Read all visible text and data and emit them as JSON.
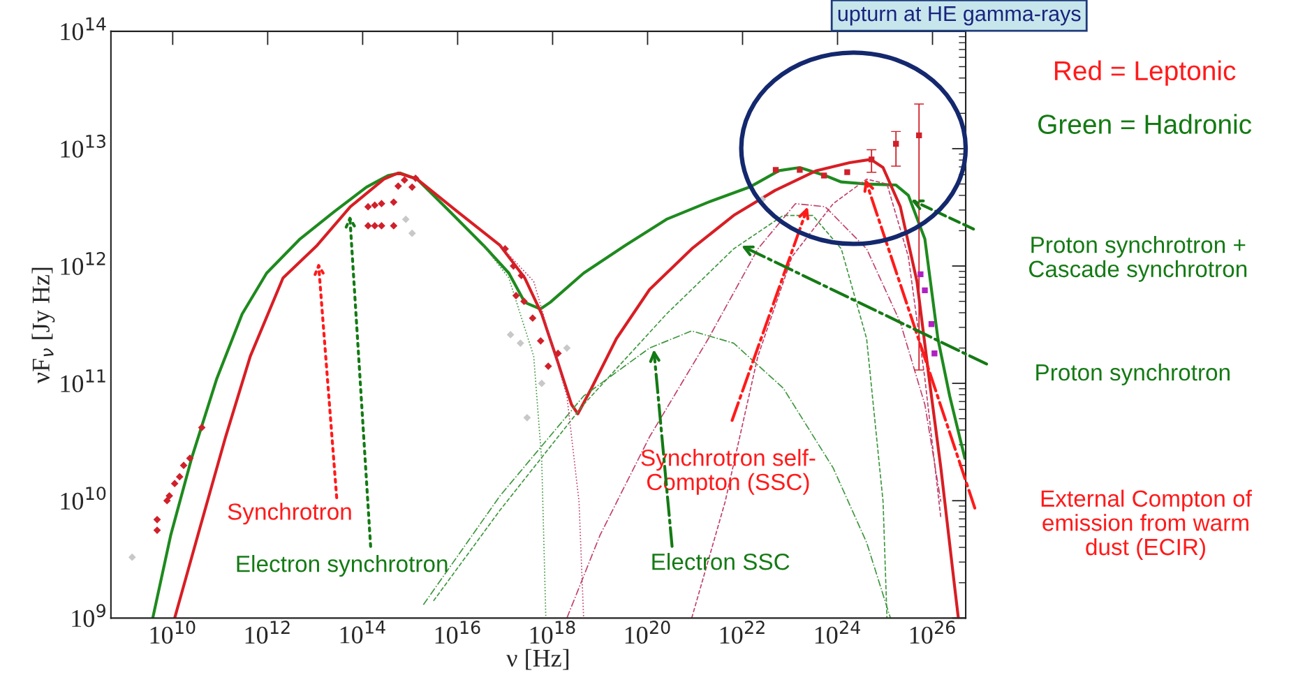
{
  "chart_data": {
    "type": "line",
    "xlabel": "ν [Hz]",
    "ylabel": "νF$_{ν}$ [Jy Hz]",
    "log": "xy",
    "grid": false,
    "legend": false,
    "xlim": [
      500000000.0,
      5e+26
    ],
    "ylim": [
      1000000000.0,
      100000000000000.0
    ],
    "xticks": [
      {
        "value": 10000000000.0,
        "label": "10$^{10}$"
      },
      {
        "value": 1000000000000.0,
        "label": "10$^{12}$"
      },
      {
        "value": 100000000000000.0,
        "label": "10$^{14}$"
      },
      {
        "value": 1e+16,
        "label": "10$^{16}$"
      },
      {
        "value": 1e+18,
        "label": "10$^{18}$"
      },
      {
        "value": 1e+20,
        "label": "10$^{20}$"
      },
      {
        "value": 1e+22,
        "label": "10$^{22}$"
      },
      {
        "value": 1e+24,
        "label": "10$^{24}$"
      },
      {
        "value": 1e+26,
        "label": "10$^{26}$"
      }
    ],
    "yticks": [
      {
        "value": 1000000000.0,
        "label": "10$^{9}$"
      },
      {
        "value": 10000000000.0,
        "label": "10$^{10}$"
      },
      {
        "value": 100000000000.0,
        "label": "10$^{11}$"
      },
      {
        "value": 1000000000000.0,
        "label": "10$^{12}$"
      },
      {
        "value": 10000000000000.0,
        "label": "10$^{13}$"
      },
      {
        "value": 100000000000000.0,
        "label": "10$^{14}$"
      }
    ],
    "series": [
      {
        "color": "#1e8a1e",
        "line_style": "solid",
        "x": [
          3800000000.0,
          9100000000.0,
          25000000000.0,
          85000000000.0,
          290000000000.0,
          950000000000.0,
          4800000000000.0,
          25000000000000.0,
          120000000000000.0,
          340000000000000.0,
          620000000000000.0,
          1400000000000000.0,
          6900000000000000.0,
          3.5e+16,
          1.2e+17,
          2.6e+17,
          5.5e+17,
          8.9e+17,
          4.5e+18,
          3.4e+19,
          2.5e+20,
          1.9e+21,
          1.4e+22,
          5.9e+22,
          1.6e+23,
          5.5e+23,
          1.2e+24,
          4.1e+24,
          1.7e+25,
          3.1e+25,
          6.9e+25,
          1.3e+26,
          2.3e+26,
          4.8e+26
        ],
        "values": [
          1000000000.0,
          5100000000.0,
          23000000000.0,
          110000000000.0,
          390000000000.0,
          870000000000.0,
          1700000000000.0,
          2900000000000.0,
          4700000000000.0,
          5900000000000.0,
          6200000000000.0,
          5500000000000.0,
          2900000000000.0,
          1500000000000.0,
          870000000000.0,
          490000000000.0,
          430000000000.0,
          490000000000.0,
          870000000000.0,
          1500000000000.0,
          2500000000000.0,
          3500000000000.0,
          4700000000000.0,
          6500000000000.0,
          6900000000000.0,
          5900000000000.0,
          5200000000000.0,
          5000000000000.0,
          4900000000000.0,
          4000000000000.0,
          1700000000000.0,
          240000000000.0,
          78000000000.0,
          23000000000.0
        ]
      },
      {
        "color": "#d81e24",
        "line_style": "solid",
        "x": [
          11000000000.0,
          38000000000.0,
          130000000000.0,
          430000000000.0,
          2100000000000.0,
          11000000000000.0,
          55000000000000.0,
          280000000000000.0,
          560000000000000.0,
          1400000000000000.0,
          1e+16,
          7.8e+16,
          2.6e+17,
          5.9e+17,
          1.3e+18,
          2.5e+18,
          3.4e+18,
          6.6e+18,
          2.2e+19,
          1.1e+20,
          8.5e+20,
          6.5e+21,
          4.8e+22,
          3.6e+23,
          1.8e+24,
          5e+24,
          9.1e+24,
          2.1e+25,
          4.7e+25,
          8.5e+25,
          1.5e+26,
          2.9e+26,
          3.5e+26
        ],
        "values": [
          1000000000.0,
          6000000000.0,
          35000000000.0,
          170000000000.0,
          790000000000.0,
          1500000000000.0,
          3200000000000.0,
          5500000000000.0,
          6200000000000.0,
          5500000000000.0,
          2900000000000.0,
          1500000000000.0,
          790000000000.0,
          390000000000.0,
          150000000000.0,
          66000000000.0,
          55000000000.0,
          91000000000.0,
          240000000000.0,
          630000000000.0,
          1400000000000.0,
          2700000000000.0,
          4400000000000.0,
          6500000000000.0,
          7600000000000.0,
          8100000000000.0,
          6900000000000.0,
          3200000000000.0,
          740000000000.0,
          110000000000.0,
          19000000000.0,
          1900000000.0,
          1000000000.0
        ]
      },
      {
        "color": "#3c963c",
        "line_style": "dashed",
        "x": [
          3100000000000000.0,
          7.8e+16,
          4.5e+18,
          2.5e+20,
          6.5e+21,
          7.2e+22,
          3e+23,
          1.2e+24,
          4.1e+24,
          9.1e+24,
          1.1e+25
        ],
        "values": [
          1400000000.0,
          8300000000.0,
          66000000000.0,
          390000000000.0,
          1400000000000.0,
          2700000000000.0,
          2700000000000.0,
          1400000000000.0,
          240000000000.0,
          9800000000.0,
          1000000000.0
        ]
      },
      {
        "color": "#3c963c",
        "line_style": "dashdot",
        "x": [
          1900000000000000.0,
          7.8e+16,
          4.5e+18,
          1.1e+20,
          8.5e+20,
          6.5e+21,
          7.2e+22,
          8.1e+23,
          4.1e+24,
          1.3e+25
        ],
        "values": [
          1300000000.0,
          11000000000.0,
          78000000000.0,
          200000000000.0,
          280000000000.0,
          220000000000.0,
          91000000000.0,
          19000000000.0,
          4400000000.0,
          1000000000.0
        ]
      },
      {
        "color": "#3c963c",
        "line_style": "dotted",
        "x": [
          3.5e+16,
          1.2e+17,
          4e+17,
          5.9e+17,
          7.2e+17
        ],
        "values": [
          1500000000000.0,
          790000000000.0,
          170000000000.0,
          22000000000.0,
          1000000000.0
        ]
      },
      {
        "color": "#c0406a",
        "line_style": "dotted",
        "x": [
          7.8e+16,
          4e+17,
          2e+18,
          3.6e+18,
          4.5e+18
        ],
        "values": [
          1500000000000.0,
          740000000000.0,
          78000000000.0,
          9800000000.0,
          1000000000.0
        ]
      },
      {
        "color": "#c0406a",
        "line_style": "dashdot",
        "x": [
          2e+18,
          1e+19,
          1.1e+20,
          1.9e+21,
          2.1e+22,
          1.3e+23,
          5.5e+23,
          4.1e+24,
          2.1e+25,
          6.9e+25,
          1.5e+26
        ],
        "values": [
          1000000000.0,
          5100000000.0,
          35000000000.0,
          240000000000.0,
          1400000000000.0,
          3400000000000.0,
          3200000000000.0,
          1400000000000.0,
          330000000000.0,
          66000000000.0,
          9800000000.0
        ]
      },
      {
        "color": "#c0406a",
        "line_style": "dashed",
        "x": [
          8.5e+20,
          4.3e+21,
          2.1e+22,
          1.1e+23,
          8.1e+23,
          4.1e+24,
          1.1e+25,
          3.1e+25,
          6.9e+25,
          1.5e+26
        ],
        "values": [
          1000000000.0,
          9800000000.0,
          170000000000.0,
          1200000000000.0,
          3400000000000.0,
          5500000000000.0,
          5000000000000.0,
          1200000000000.0,
          110000000000.0,
          7100000000.0
        ]
      },
      {
        "type": "scatter",
        "color": "#c8c8c8",
        "marker": "diamond",
        "x": [
          1400000000.0,
          810000000000000.0,
          1100000000000000.0,
          1.3e+17,
          2.1e+17,
          5.9e+17,
          2e+18,
          2.9e+17,
          2.6e+22
        ],
        "values": [
          3300000000.0,
          2500000000000.0,
          1900000000000.0,
          260000000000.0,
          220000000000.0,
          100000000000.0,
          200000000000.0,
          51000000000.0,
          3700000000000.0
        ]
      },
      {
        "type": "scatter",
        "color": "#d0202a",
        "marker": "diamond",
        "x": [
          4700000000.0,
          4700000000.0,
          7600000000.0,
          8500000000.0,
          11000000000.0,
          14000000000.0,
          17000000000.0,
          23000000000.0,
          41000000000.0,
          130000000000000.0,
          180000000000000.0,
          250000000000000.0,
          450000000000000.0,
          130000000000000.0,
          180000000000000.0,
          250000000000000.0,
          450000000000000.0,
          560000000000000.0,
          760000000000000.0,
          1100000000000000.0,
          1300000000000000.0,
          1e+17,
          1.5e+17,
          1.7e+17,
          2.2e+17,
          2.5e+17,
          3.8e+17,
          5.6e+17,
          8.1e+17,
          1.3e+18
        ],
        "values": [
          6900000000.0,
          5600000000.0,
          10000000000.0,
          11000000000.0,
          14000000000.0,
          16000000000.0,
          20000000000.0,
          23000000000.0,
          42000000000.0,
          3200000000000.0,
          3300000000000.0,
          3400000000000.0,
          3500000000000.0,
          2200000000000.0,
          2200000000000.0,
          2200000000000.0,
          2200000000000.0,
          4800000000000.0,
          5400000000000.0,
          4700000000000.0,
          5600000000000.0,
          1400000000000.0,
          1000000000000.0,
          560000000000.0,
          830000000000.0,
          500000000000.0,
          360000000000.0,
          230000000000.0,
          140000000000.0,
          180000000000.0
        ]
      },
      {
        "type": "scatter",
        "color": "#d0202a",
        "marker": "square",
        "x": [
          5e+22,
          1.6e+23,
          5.2e+23,
          1.6e+24,
          5.2e+24,
          1.7e+25,
          5.2e+25
        ],
        "values": [
          6600000000000.0,
          6600000000000.0,
          5900000000000.0,
          6300000000000.0,
          8100000000000.0,
          11000000000000.0,
          13000000000000.0
        ],
        "errors": [
          null,
          null,
          null,
          null,
          [
            6300000000000.0,
            9800000000000.0
          ],
          [
            7100000000000.0,
            14000000000000.0
          ],
          [
            130000000000.0,
            24000000000000.0
          ]
        ]
      },
      {
        "type": "scatter",
        "color": "#b020c0",
        "marker": "square",
        "x": [
          5.6e+25,
          6.9e+25,
          9.5e+25,
          1.1e+26
        ],
        "values": [
          850000000000.0,
          620000000000.0,
          320000000000.0,
          180000000000.0
        ]
      }
    ],
    "annotations": [
      "Synchrotron",
      "Electron synchrotron",
      "Synchrotron self-\nCompton (SSC)",
      "Electron SSC",
      "External Compton of\nemission from warm\ndust (ECIR)",
      "Proton synchrotron +\nCascade synchrotron",
      "Proton synchrotron",
      "Red = Leptonic",
      "Green = Hadronic",
      "upturn at HE gamma-rays"
    ]
  }
}
